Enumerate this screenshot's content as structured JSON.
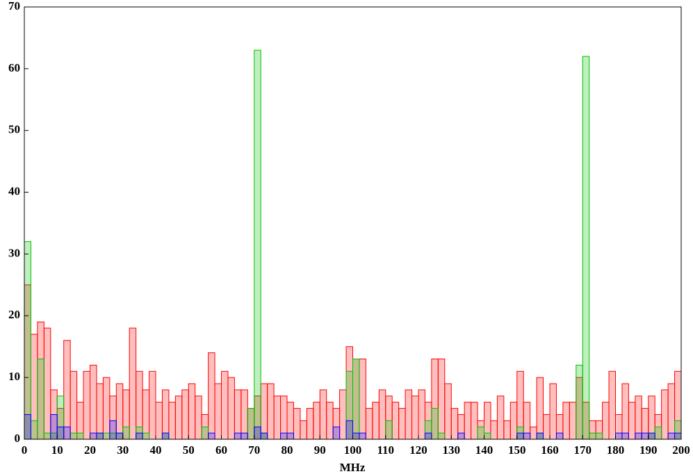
{
  "chart_data": {
    "type": "histogram",
    "xlabel": "MHz",
    "bins": [
      0,
      2,
      4,
      6,
      8,
      10,
      12,
      14,
      16,
      18,
      20,
      22,
      24,
      26,
      28,
      30,
      32,
      34,
      36,
      38,
      40,
      42,
      44,
      46,
      48,
      50,
      52,
      54,
      56,
      58,
      60,
      62,
      64,
      66,
      68,
      70,
      72,
      74,
      76,
      78,
      80,
      82,
      84,
      86,
      88,
      90,
      92,
      94,
      96,
      98,
      100,
      102,
      104,
      106,
      108,
      110,
      112,
      114,
      116,
      118,
      120,
      122,
      124,
      126,
      128,
      130,
      132,
      134,
      136,
      138,
      140,
      142,
      144,
      146,
      148,
      150,
      152,
      154,
      156,
      158,
      160,
      162,
      164,
      166,
      168,
      170,
      172,
      174,
      176,
      178,
      180,
      182,
      184,
      186,
      188,
      190,
      192,
      194,
      196,
      198,
      200
    ],
    "series": [
      {
        "color": "#ff0000",
        "values": [
          25,
          17,
          19,
          18,
          8,
          5,
          16,
          11,
          6,
          11,
          12,
          9,
          10,
          7,
          9,
          8,
          18,
          11,
          8,
          11,
          6,
          8,
          6,
          7,
          8,
          9,
          7,
          4,
          14,
          9,
          11,
          10,
          8,
          8,
          5,
          7,
          9,
          9,
          7,
          7,
          6,
          5,
          3,
          5,
          6,
          8,
          6,
          5,
          8,
          15,
          13,
          13,
          5,
          6,
          8,
          7,
          6,
          5,
          8,
          7,
          8,
          6,
          13,
          13,
          9,
          5,
          4,
          6,
          6,
          3,
          6,
          3,
          7,
          3,
          6,
          11,
          6,
          2,
          10,
          4,
          9,
          4,
          6,
          6,
          10,
          6,
          3,
          3,
          6,
          11,
          4,
          9,
          6,
          7,
          5,
          7,
          4,
          8,
          9,
          11
        ]
      },
      {
        "color": "#00c000",
        "values": [
          32,
          3,
          13,
          1,
          1,
          7,
          0,
          1,
          1,
          0,
          0,
          1,
          1,
          1,
          1,
          2,
          0,
          2,
          1,
          0,
          0,
          1,
          0,
          0,
          0,
          0,
          0,
          2,
          0,
          0,
          0,
          0,
          0,
          0,
          5,
          63,
          1,
          0,
          0,
          0,
          0,
          0,
          0,
          0,
          0,
          0,
          0,
          0,
          0,
          11,
          13,
          0,
          0,
          0,
          0,
          3,
          0,
          0,
          0,
          0,
          0,
          3,
          5,
          1,
          0,
          0,
          0,
          0,
          0,
          2,
          1,
          0,
          0,
          0,
          0,
          2,
          0,
          0,
          1,
          0,
          0,
          0,
          0,
          0,
          12,
          62,
          1,
          1,
          0,
          0,
          0,
          0,
          0,
          0,
          0,
          1,
          2,
          0,
          0,
          3
        ]
      },
      {
        "color": "#0000ff",
        "values": [
          4,
          0,
          0,
          0,
          4,
          2,
          2,
          0,
          0,
          0,
          1,
          1,
          0,
          3,
          1,
          0,
          0,
          1,
          0,
          0,
          0,
          1,
          0,
          0,
          0,
          0,
          0,
          0,
          1,
          0,
          0,
          0,
          1,
          1,
          0,
          2,
          1,
          0,
          0,
          1,
          1,
          0,
          0,
          0,
          0,
          0,
          0,
          2,
          0,
          3,
          1,
          1,
          0,
          0,
          0,
          0,
          0,
          0,
          0,
          0,
          0,
          1,
          0,
          0,
          0,
          0,
          1,
          0,
          0,
          0,
          0,
          0,
          0,
          0,
          0,
          1,
          1,
          0,
          1,
          0,
          0,
          1,
          0,
          0,
          0,
          0,
          0,
          0,
          0,
          0,
          1,
          1,
          0,
          1,
          1,
          1,
          0,
          0,
          1,
          1
        ]
      }
    ],
    "xlim": [
      0,
      200
    ],
    "xticks": [
      0,
      10,
      20,
      30,
      40,
      50,
      60,
      70,
      80,
      90,
      100,
      110,
      120,
      130,
      140,
      150,
      160,
      170,
      180,
      190,
      200
    ],
    "ylim": [
      0,
      70
    ],
    "yticks": [
      0,
      10,
      20,
      30,
      40,
      50,
      60,
      70
    ]
  }
}
